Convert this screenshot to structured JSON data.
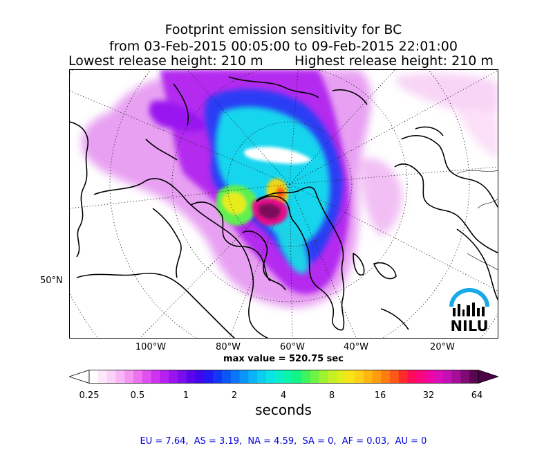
{
  "title": {
    "line1": "Footprint emission sensitivity for BC",
    "line2": "from 03-Feb-2015 00:05:00 to 09-Feb-2015 22:01:00",
    "lowest": "Lowest release height: 210 m",
    "highest": "Highest release height: 210 m"
  },
  "map": {
    "lon_labels": [
      "100°W",
      "80°W",
      "60°W",
      "40°W",
      "20°W"
    ],
    "lat_labels": [
      "50°N"
    ],
    "max_value": "max value = 520.75 sec",
    "logo_text": "NILU"
  },
  "colorbar": {
    "ticks": [
      "0.25",
      "0.5",
      "1",
      "2",
      "4",
      "8",
      "16",
      "32",
      "64"
    ],
    "unit": "seconds",
    "colors": [
      "#ffffff",
      "#fde8fb",
      "#fbd2f8",
      "#f8b6f5",
      "#f396f2",
      "#ed72ef",
      "#e24ff0",
      "#cf32f1",
      "#b81ff1",
      "#9a14f0",
      "#7a0cee",
      "#5a05ec",
      "#3d06ee",
      "#2218f3",
      "#1136f6",
      "#0a56f8",
      "#0a76f9",
      "#0a94fa",
      "#0ab2f7",
      "#0acdf0",
      "#0ae3e4",
      "#0aefcb",
      "#0af5a8",
      "#12f584",
      "#3df45e",
      "#6ff342",
      "#9ef232",
      "#c4f025",
      "#e2ee1c",
      "#f6e416",
      "#ffd013",
      "#ffb811",
      "#ff9c10",
      "#ff7c12",
      "#ff5817",
      "#ff2a2a",
      "#ff0b58",
      "#fa067e",
      "#ee07a0",
      "#dc0cb6",
      "#c20fb6",
      "#a40f98",
      "#800a74",
      "#5c0552"
    ]
  },
  "footer": "EU = 7.64,  AS = 3.19,  NA = 4.59,  SA = 0,  AF = 0.03,  AU = 0"
}
